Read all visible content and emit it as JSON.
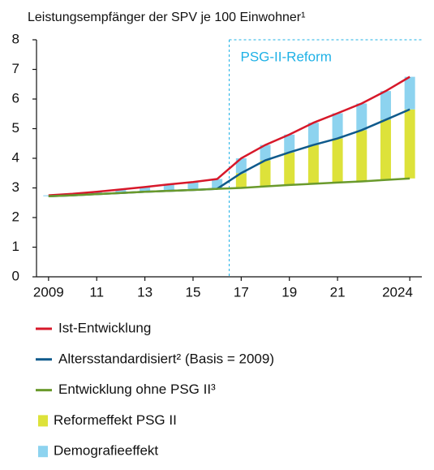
{
  "chart_data": {
    "type": "combo",
    "title": "Leistungsempfänger der SPV je 100 Einwohner¹",
    "categories": [
      "2009",
      null,
      "11",
      null,
      "13",
      null,
      "15",
      null,
      "17",
      null,
      "19",
      null,
      "21",
      null,
      null,
      "2024"
    ],
    "ylim": [
      0,
      8
    ],
    "yticks": [
      0,
      1,
      2,
      3,
      4,
      5,
      6,
      7,
      8
    ],
    "stack_base": "Entwicklung ohne PSG II³",
    "annotations": [
      {
        "text": "PSG-II-Reform",
        "category": "17",
        "color": "#1fb1e6"
      }
    ],
    "series": [
      {
        "name": "Ist-Entwicklung",
        "type": "line",
        "color": "#d7182a",
        "values": [
          2.75,
          2.8,
          2.87,
          2.95,
          3.03,
          3.12,
          3.2,
          3.3,
          4.0,
          4.45,
          4.8,
          5.2,
          5.52,
          5.85,
          6.27,
          6.75
        ]
      },
      {
        "name": "Altersstandardisiert² (Basis = 2009)",
        "type": "line",
        "color": "#0f5a8c",
        "values": [
          2.72,
          2.75,
          2.79,
          2.83,
          2.87,
          2.9,
          2.93,
          2.97,
          3.5,
          3.93,
          4.2,
          4.45,
          4.67,
          4.95,
          5.3,
          5.65
        ]
      },
      {
        "name": "Entwicklung ohne PSG II³",
        "type": "line",
        "color": "#6a9a2c",
        "values": [
          2.72,
          2.75,
          2.79,
          2.83,
          2.87,
          2.9,
          2.93,
          2.97,
          3.0,
          3.05,
          3.1,
          3.14,
          3.18,
          3.22,
          3.27,
          3.32
        ]
      },
      {
        "name": "Reformeffekt PSG II",
        "type": "bar",
        "color": "#dde23a",
        "values": [
          0,
          0,
          0,
          0,
          0,
          0,
          0,
          0,
          0.5,
          0.88,
          1.1,
          1.31,
          1.49,
          1.73,
          2.03,
          2.33
        ]
      },
      {
        "name": "Demografieeffekt",
        "type": "bar",
        "color": "#8dd3ef",
        "values": [
          0.03,
          0.05,
          0.08,
          0.12,
          0.16,
          0.22,
          0.27,
          0.33,
          0.5,
          0.52,
          0.6,
          0.75,
          0.85,
          0.9,
          0.97,
          1.1
        ]
      }
    ]
  }
}
